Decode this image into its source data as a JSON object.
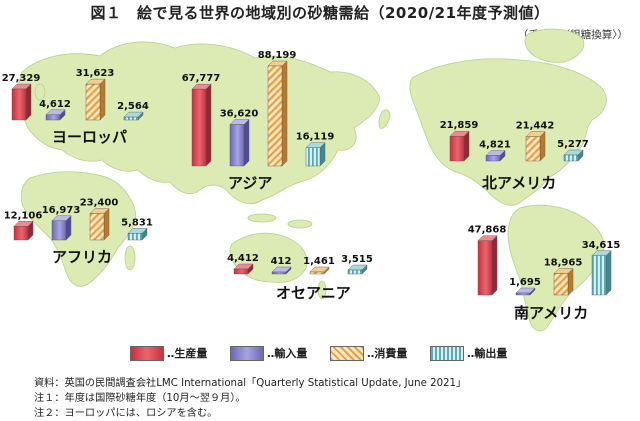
{
  "title": "図１　絵で見る世界の地域別の砂糖需給（2020/21年度予測値）",
  "unit": "（千トン〈粗糖換算〉）",
  "colors": {
    "production": "#d9404a",
    "import": "#7a78c8",
    "consumption": "#e8a040",
    "export": "#6ab8c0",
    "land": "#dcebb4",
    "ocean": "#ffffff"
  },
  "chart_data": {
    "type": "bar",
    "title": "図１　絵で見る世界の地域別の砂糖需給（2020/21年度予測値）",
    "unit": "（千トン〈粗糖換算〉）",
    "categories": [
      "ヨーロッパ",
      "アフリカ",
      "アジア",
      "オセアニア",
      "北アメリカ",
      "南アメリカ"
    ],
    "series": [
      {
        "name": "生産量",
        "values": [
          27329,
          12106,
          67777,
          4412,
          21859,
          47868
        ]
      },
      {
        "name": "輸入量",
        "values": [
          4612,
          16973,
          36620,
          412,
          4821,
          1695
        ]
      },
      {
        "name": "消費量",
        "values": [
          31623,
          23400,
          88199,
          1461,
          21442,
          18965
        ]
      },
      {
        "name": "輸出量",
        "values": [
          2564,
          5831,
          16119,
          3515,
          5277,
          34615
        ]
      }
    ],
    "value_labels": [
      [
        "27,329",
        "4,612",
        "31,623",
        "2,564"
      ],
      [
        "12,106",
        "16,973",
        "23,400",
        "5,831"
      ],
      [
        "67,777",
        "36,620",
        "88,199",
        "16,119"
      ],
      [
        "4,412",
        "412",
        "1,461",
        "3,515"
      ],
      [
        "21,859",
        "4,821",
        "21,442",
        "5,277"
      ],
      [
        "47,868",
        "1,695",
        "18,965",
        "34,615"
      ]
    ],
    "legend": {
      "position": "bottom",
      "labels": [
        "‥生産量",
        "‥輸入量",
        "‥消費量",
        "‥輸出量"
      ]
    }
  },
  "notes": [
    "資料：英国の民間調査会社LMC International「Quarterly Statistical Update, June 2021」",
    "注１：年度は国際砂糖年度（10月～翌９月）。",
    "注２：ヨーロッパには、ロシアを含む。"
  ]
}
